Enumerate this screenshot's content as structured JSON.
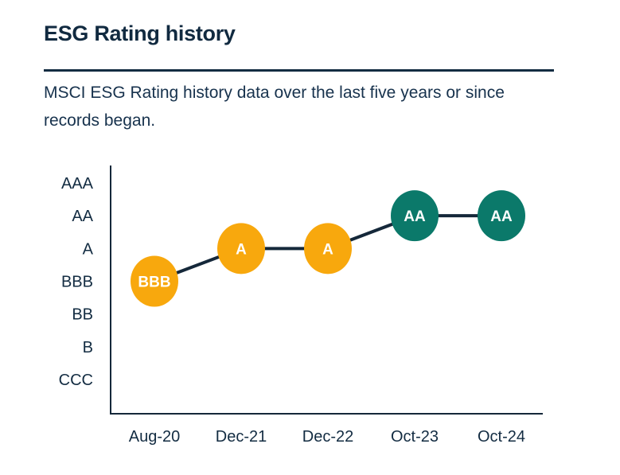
{
  "page": {
    "title": "ESG Rating history",
    "subtitle_lines": [
      "MSCI ESG Rating history data over the last five years or since",
      "records began."
    ]
  },
  "colors": {
    "title_navy": "#112A40",
    "text_navy": "#132C42",
    "divider_navy": "#132C42",
    "connector_line": "#15283A",
    "axis_line": "#15283A",
    "rating_yellow": "#F8A80D",
    "rating_teal": "#0B796A",
    "point_label_white": "#FFFFFF",
    "background": "#FFFFFF"
  },
  "chart_data": {
    "type": "line",
    "title": "ESG Rating history",
    "x_categories": [
      "Aug-20",
      "Dec-21",
      "Dec-22",
      "Oct-23",
      "Oct-24"
    ],
    "y_scale_bottom_to_top": [
      "CCC",
      "B",
      "BB",
      "BBB",
      "A",
      "AA",
      "AAA"
    ],
    "points": [
      {
        "x": "Aug-20",
        "rating": "BBB",
        "color": "#F8A80D"
      },
      {
        "x": "Dec-21",
        "rating": "A",
        "color": "#F8A80D"
      },
      {
        "x": "Dec-22",
        "rating": "A",
        "color": "#F8A80D"
      },
      {
        "x": "Oct-23",
        "rating": "AA",
        "color": "#0B796A"
      },
      {
        "x": "Oct-24",
        "rating": "AA",
        "color": "#0B796A"
      }
    ],
    "grid": false,
    "legend": false,
    "marker_labels_on_points": true,
    "xlabel": "",
    "ylabel": ""
  }
}
